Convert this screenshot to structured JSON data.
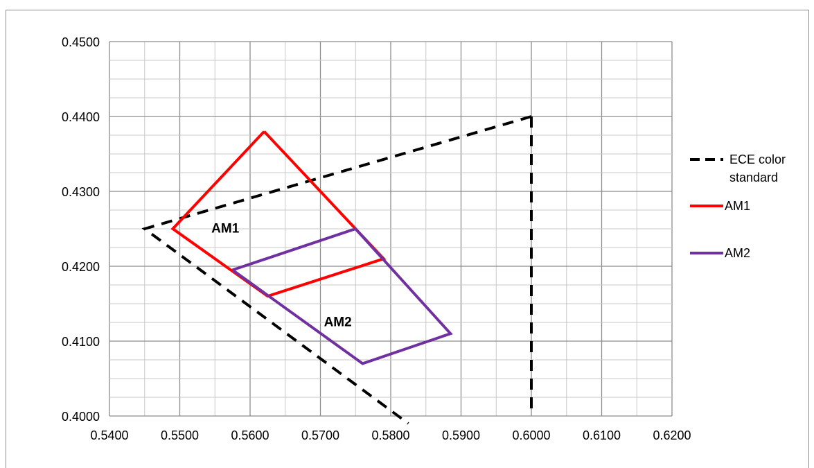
{
  "chart_data": {
    "type": "line",
    "title": "",
    "xlabel": "",
    "ylabel": "",
    "xlim": [
      0.54,
      0.62
    ],
    "ylim": [
      0.4,
      0.45
    ],
    "x_ticks": [
      "0.5400",
      "0.5500",
      "0.5600",
      "0.5700",
      "0.5800",
      "0.5900",
      "0.6000",
      "0.6100",
      "0.6200"
    ],
    "y_ticks": [
      "0.4000",
      "0.4100",
      "0.4200",
      "0.4300",
      "0.4400",
      "0.4500"
    ],
    "grid": true,
    "minor_grid": true,
    "legend_position": "right",
    "series": [
      {
        "name": "ECE color standard",
        "color": "#000000",
        "style": "dashed",
        "points": [
          [
            0.6,
            0.44
          ],
          [
            0.545,
            0.425
          ],
          [
            0.5825,
            0.399
          ]
        ],
        "points_b": [
          [
            0.6,
            0.44
          ],
          [
            0.6,
            0.4
          ]
        ]
      },
      {
        "name": "AM1",
        "color": "#ff0000",
        "style": "solid",
        "points": [
          [
            0.562,
            0.438
          ],
          [
            0.549,
            0.425
          ],
          [
            0.5625,
            0.416
          ],
          [
            0.579,
            0.421
          ],
          [
            0.562,
            0.438
          ]
        ]
      },
      {
        "name": "AM2",
        "color": "#7030a0",
        "style": "solid",
        "points": [
          [
            0.5575,
            0.4195
          ],
          [
            0.575,
            0.425
          ],
          [
            0.5885,
            0.411
          ],
          [
            0.576,
            0.407
          ],
          [
            0.5575,
            0.4195
          ]
        ]
      }
    ],
    "legend": {
      "ece_line1": "ECE color",
      "ece_line2": "standard",
      "am1": "AM1",
      "am2": "AM2"
    },
    "annotations": [
      {
        "text": "AM1",
        "x": 0.5545,
        "y": 0.4245
      },
      {
        "text": "AM2",
        "x": 0.5705,
        "y": 0.412
      }
    ]
  }
}
